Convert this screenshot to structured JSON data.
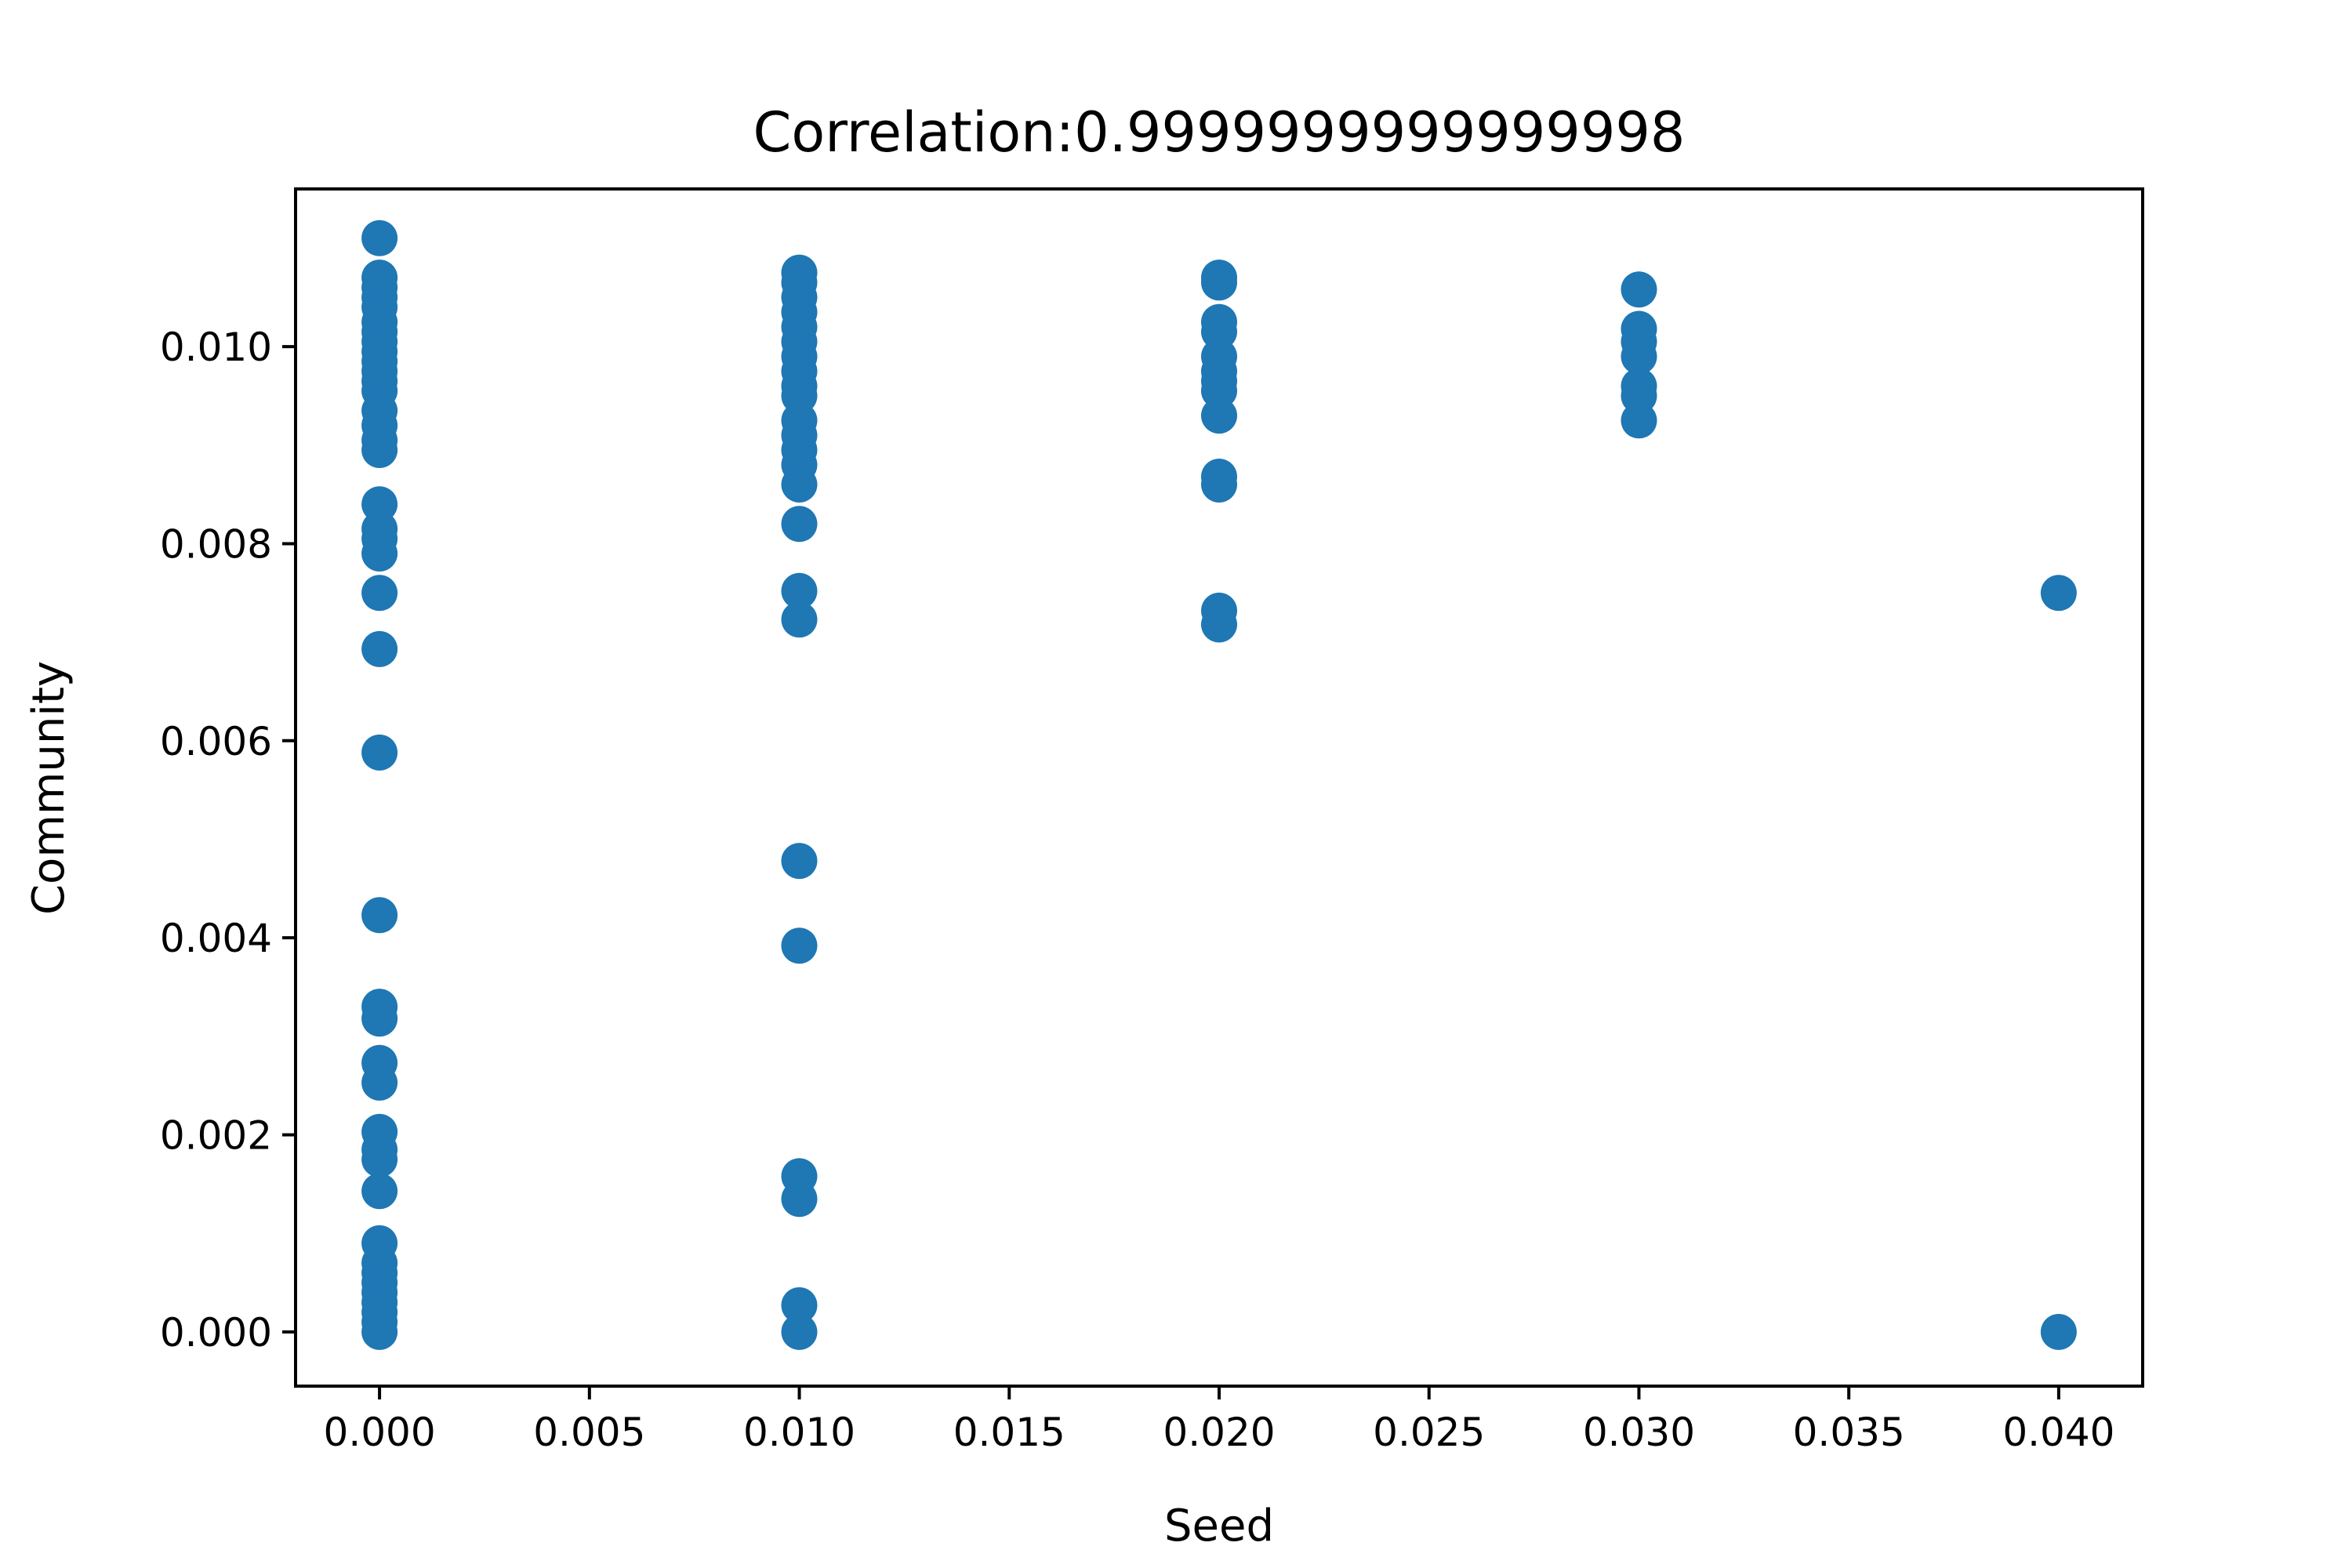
{
  "chart_data": {
    "type": "scatter",
    "title": "Correlation:0.9999999999999998",
    "xlabel": "Seed",
    "ylabel": "Community",
    "xlim": [
      -0.002,
      0.042
    ],
    "ylim": [
      -0.00055,
      0.0116
    ],
    "xticks": [
      0.0,
      0.005,
      0.01,
      0.015,
      0.02,
      0.025,
      0.03,
      0.035,
      0.04
    ],
    "xtick_labels": [
      "0.000",
      "0.005",
      "0.010",
      "0.015",
      "0.020",
      "0.025",
      "0.030",
      "0.035",
      "0.040"
    ],
    "yticks": [
      0.0,
      0.002,
      0.004,
      0.006,
      0.008,
      0.01
    ],
    "ytick_labels": [
      "0.000",
      "0.002",
      "0.004",
      "0.006",
      "0.008",
      "0.010"
    ],
    "grid": false,
    "marker_color": "#1f77b4",
    "series": [
      {
        "points": [
          [
            0.0,
            0.0111
          ],
          [
            0.0,
            0.0107
          ],
          [
            0.0,
            0.0106
          ],
          [
            0.0,
            0.0105
          ],
          [
            0.0,
            0.0104
          ],
          [
            0.0,
            0.01025
          ],
          [
            0.0,
            0.01015
          ],
          [
            0.0,
            0.01005
          ],
          [
            0.0,
            0.00995
          ],
          [
            0.0,
            0.00985
          ],
          [
            0.0,
            0.00975
          ],
          [
            0.0,
            0.00965
          ],
          [
            0.0,
            0.00955
          ],
          [
            0.0,
            0.00935
          ],
          [
            0.0,
            0.0092
          ],
          [
            0.0,
            0.00905
          ],
          [
            0.0,
            0.00895
          ],
          [
            0.0,
            0.0084
          ],
          [
            0.0,
            0.00815
          ],
          [
            0.0,
            0.00805
          ],
          [
            0.0,
            0.0079
          ],
          [
            0.0,
            0.0075
          ],
          [
            0.0,
            0.00693
          ],
          [
            0.0,
            0.00588
          ],
          [
            0.0,
            0.00423
          ],
          [
            0.0,
            0.0033
          ],
          [
            0.0,
            0.00318
          ],
          [
            0.0,
            0.00273
          ],
          [
            0.0,
            0.00253
          ],
          [
            0.0,
            0.00203
          ],
          [
            0.0,
            0.00185
          ],
          [
            0.0,
            0.00175
          ],
          [
            0.0,
            0.00143
          ],
          [
            0.0,
            0.0009
          ],
          [
            0.0,
            0.0007
          ],
          [
            0.0,
            0.0006
          ],
          [
            0.0,
            0.0005
          ],
          [
            0.0,
            0.0004
          ],
          [
            0.0,
            0.0003
          ],
          [
            0.0,
            0.0002
          ],
          [
            0.0,
            0.0001
          ],
          [
            0.0,
            0.0
          ],
          [
            0.01,
            0.01075
          ],
          [
            0.01,
            0.01065
          ],
          [
            0.01,
            0.0105
          ],
          [
            0.01,
            0.01035
          ],
          [
            0.01,
            0.0102
          ],
          [
            0.01,
            0.01005
          ],
          [
            0.01,
            0.0099
          ],
          [
            0.01,
            0.00975
          ],
          [
            0.01,
            0.0096
          ],
          [
            0.01,
            0.0095
          ],
          [
            0.01,
            0.00925
          ],
          [
            0.01,
            0.0091
          ],
          [
            0.01,
            0.00895
          ],
          [
            0.01,
            0.0088
          ],
          [
            0.01,
            0.0086
          ],
          [
            0.01,
            0.0082
          ],
          [
            0.01,
            0.00752
          ],
          [
            0.01,
            0.00723
          ],
          [
            0.01,
            0.00478
          ],
          [
            0.01,
            0.00392
          ],
          [
            0.01,
            0.00158
          ],
          [
            0.01,
            0.00135
          ],
          [
            0.01,
            0.00027
          ],
          [
            0.01,
            0.0
          ],
          [
            0.02,
            0.0107
          ],
          [
            0.02,
            0.01065
          ],
          [
            0.02,
            0.01025
          ],
          [
            0.02,
            0.01015
          ],
          [
            0.02,
            0.0099
          ],
          [
            0.02,
            0.00975
          ],
          [
            0.02,
            0.00965
          ],
          [
            0.02,
            0.00955
          ],
          [
            0.02,
            0.0093
          ],
          [
            0.02,
            0.00868
          ],
          [
            0.02,
            0.0086
          ],
          [
            0.02,
            0.00732
          ],
          [
            0.02,
            0.00718
          ],
          [
            0.03,
            0.01058
          ],
          [
            0.03,
            0.01018
          ],
          [
            0.03,
            0.01005
          ],
          [
            0.03,
            0.0099
          ],
          [
            0.03,
            0.0096
          ],
          [
            0.03,
            0.0095
          ],
          [
            0.03,
            0.00925
          ],
          [
            0.04,
            0.0075
          ],
          [
            0.04,
            0.0
          ]
        ]
      }
    ]
  }
}
